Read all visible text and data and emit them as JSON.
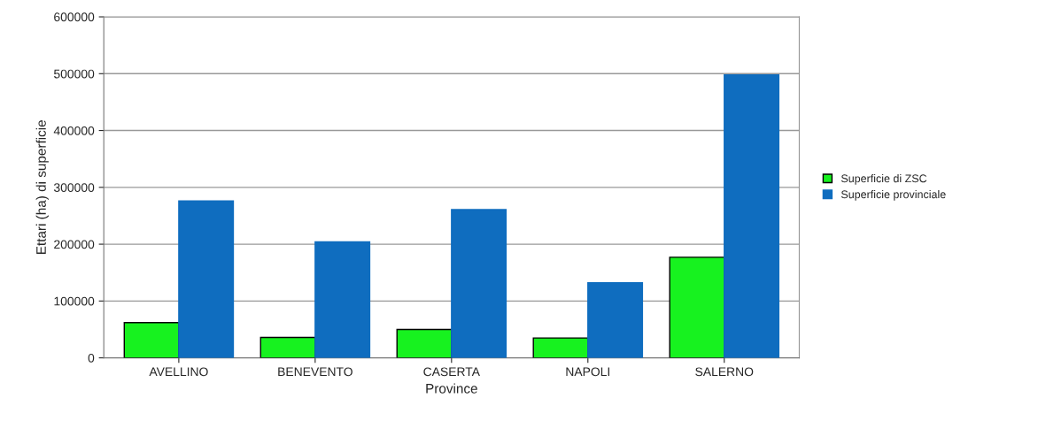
{
  "chart_data": {
    "type": "bar",
    "xlabel": "Province",
    "ylabel": "Ettari (ha) di superficie",
    "categories": [
      "AVELLINO",
      "BENEVENTO",
      "CASERTA",
      "NAPOLI",
      "SALERNO"
    ],
    "series": [
      {
        "name": "Superficie di ZSC",
        "color": "#17f21f",
        "values": [
          62000,
          36000,
          50000,
          35000,
          177000
        ]
      },
      {
        "name": "Superficie provinciale",
        "color": "#0f6dbf",
        "values": [
          276000,
          204000,
          261000,
          132000,
          498000
        ]
      }
    ],
    "ylim": [
      0,
      600000
    ],
    "yticks": [
      0,
      100000,
      200000,
      300000,
      400000,
      500000,
      600000
    ],
    "grid": "y",
    "legend": "right"
  }
}
